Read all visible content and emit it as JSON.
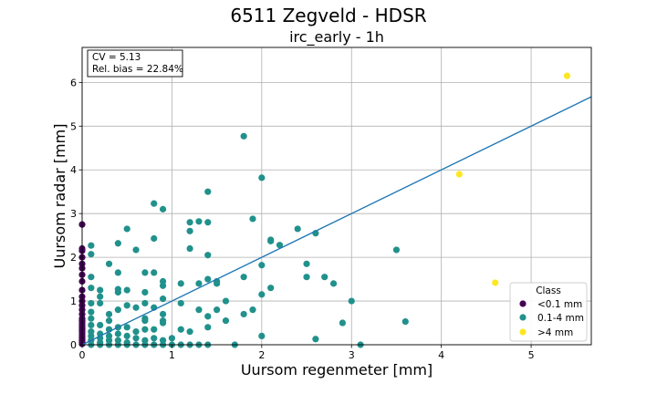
{
  "figure": {
    "suptitle": "6511 Zegveld - HDSR",
    "annotation": [
      "CV = 5.13",
      "Rel. bias = 22.84%"
    ]
  },
  "chart_data": {
    "type": "scatter",
    "title": "irc_early - 1h",
    "xlabel": "Uursom regenmeter [mm]",
    "ylabel": "Uursom radar [mm]",
    "xlim": [
      0,
      5.67
    ],
    "ylim": [
      0,
      6.8
    ],
    "xticks": [
      0,
      1,
      2,
      3,
      4,
      5
    ],
    "yticks": [
      0,
      1,
      2,
      3,
      4,
      5,
      6
    ],
    "grid": true,
    "legend": {
      "title": "Class",
      "placement": "lower-right"
    },
    "series": [
      {
        "name": "<0.1 mm",
        "color": "#440154",
        "points": [
          [
            0,
            0.02
          ],
          [
            0,
            0.05
          ],
          [
            0,
            0.08
          ],
          [
            0,
            0.12
          ],
          [
            0,
            0.15
          ],
          [
            0,
            0.2
          ],
          [
            0,
            0.25
          ],
          [
            0,
            0.3
          ],
          [
            0,
            0.35
          ],
          [
            0,
            0.4
          ],
          [
            0,
            0.45
          ],
          [
            0,
            0.5
          ],
          [
            0,
            0.55
          ],
          [
            0,
            0.6
          ],
          [
            0,
            0.7
          ],
          [
            0,
            0.8
          ],
          [
            0,
            0.9
          ],
          [
            0,
            1.0
          ],
          [
            0,
            1.1
          ],
          [
            0,
            1.25
          ],
          [
            0,
            1.45
          ],
          [
            0,
            1.6
          ],
          [
            0,
            1.75
          ],
          [
            0,
            1.85
          ],
          [
            0,
            2.0
          ],
          [
            0,
            2.15
          ],
          [
            0,
            2.2
          ],
          [
            0,
            2.75
          ]
        ]
      },
      {
        "name": "0.1-4 mm",
        "color": "#21918c",
        "points": [
          [
            0.1,
            0.0
          ],
          [
            0.1,
            0.1
          ],
          [
            0.1,
            0.2
          ],
          [
            0.1,
            0.3
          ],
          [
            0.1,
            0.45
          ],
          [
            0.1,
            0.6
          ],
          [
            0.1,
            0.75
          ],
          [
            0.1,
            0.95
          ],
          [
            0.1,
            1.3
          ],
          [
            0.1,
            1.55
          ],
          [
            0.1,
            2.07
          ],
          [
            0.1,
            2.27
          ],
          [
            0.2,
            0.0
          ],
          [
            0.2,
            0.05
          ],
          [
            0.2,
            0.15
          ],
          [
            0.2,
            0.25
          ],
          [
            0.2,
            0.45
          ],
          [
            0.2,
            0.95
          ],
          [
            0.2,
            1.1
          ],
          [
            0.2,
            1.25
          ],
          [
            0.3,
            0.0
          ],
          [
            0.3,
            0.1
          ],
          [
            0.3,
            0.2
          ],
          [
            0.3,
            0.35
          ],
          [
            0.3,
            0.55
          ],
          [
            0.3,
            0.7
          ],
          [
            0.3,
            1.85
          ],
          [
            0.4,
            0.0
          ],
          [
            0.4,
            0.1
          ],
          [
            0.4,
            0.25
          ],
          [
            0.4,
            0.4
          ],
          [
            0.4,
            0.8
          ],
          [
            0.4,
            1.2
          ],
          [
            0.4,
            1.27
          ],
          [
            0.4,
            1.65
          ],
          [
            0.4,
            2.32
          ],
          [
            0.5,
            0.0
          ],
          [
            0.5,
            0.05
          ],
          [
            0.5,
            0.2
          ],
          [
            0.5,
            0.4
          ],
          [
            0.5,
            0.9
          ],
          [
            0.5,
            1.25
          ],
          [
            0.5,
            2.65
          ],
          [
            0.6,
            0.0
          ],
          [
            0.6,
            0.15
          ],
          [
            0.6,
            0.3
          ],
          [
            0.6,
            0.85
          ],
          [
            0.6,
            2.17
          ],
          [
            0.7,
            0.0
          ],
          [
            0.7,
            0.1
          ],
          [
            0.7,
            0.35
          ],
          [
            0.7,
            0.55
          ],
          [
            0.7,
            0.6
          ],
          [
            0.7,
            0.95
          ],
          [
            0.7,
            1.2
          ],
          [
            0.7,
            1.65
          ],
          [
            0.8,
            0.0
          ],
          [
            0.8,
            0.15
          ],
          [
            0.8,
            0.35
          ],
          [
            0.8,
            0.85
          ],
          [
            0.8,
            1.65
          ],
          [
            0.8,
            2.43
          ],
          [
            0.8,
            3.23
          ],
          [
            0.9,
            0.0
          ],
          [
            0.9,
            0.1
          ],
          [
            0.9,
            0.5
          ],
          [
            0.9,
            0.55
          ],
          [
            0.9,
            0.7
          ],
          [
            0.9,
            1.05
          ],
          [
            0.9,
            1.35
          ],
          [
            0.9,
            1.45
          ],
          [
            0.9,
            3.1
          ],
          [
            1.0,
            0.0
          ],
          [
            1.0,
            0.15
          ],
          [
            1.1,
            0.0
          ],
          [
            1.1,
            0.35
          ],
          [
            1.1,
            0.95
          ],
          [
            1.1,
            1.4
          ],
          [
            1.2,
            0.0
          ],
          [
            1.2,
            0.3
          ],
          [
            1.2,
            2.2
          ],
          [
            1.2,
            2.6
          ],
          [
            1.2,
            2.8
          ],
          [
            1.3,
            0.0
          ],
          [
            1.3,
            0.8
          ],
          [
            1.3,
            1.4
          ],
          [
            1.3,
            2.82
          ],
          [
            1.4,
            0.0
          ],
          [
            1.4,
            0.4
          ],
          [
            1.4,
            0.65
          ],
          [
            1.4,
            1.5
          ],
          [
            1.4,
            2.05
          ],
          [
            1.4,
            2.8
          ],
          [
            1.4,
            3.5
          ],
          [
            1.5,
            0.8
          ],
          [
            1.5,
            1.4
          ],
          [
            1.5,
            1.45
          ],
          [
            1.6,
            0.55
          ],
          [
            1.6,
            1.0
          ],
          [
            1.7,
            0.0
          ],
          [
            1.8,
            0.7
          ],
          [
            1.8,
            1.55
          ],
          [
            1.8,
            4.77
          ],
          [
            1.9,
            0.8
          ],
          [
            1.9,
            2.88
          ],
          [
            2.0,
            0.2
          ],
          [
            2.0,
            1.15
          ],
          [
            2.0,
            1.82
          ],
          [
            2.0,
            3.82
          ],
          [
            2.1,
            1.3
          ],
          [
            2.1,
            2.37
          ],
          [
            2.1,
            2.4
          ],
          [
            2.2,
            2.28
          ],
          [
            2.4,
            2.65
          ],
          [
            2.5,
            1.55
          ],
          [
            2.5,
            1.85
          ],
          [
            2.6,
            0.13
          ],
          [
            2.6,
            2.55
          ],
          [
            2.7,
            1.55
          ],
          [
            2.8,
            1.4
          ],
          [
            2.9,
            0.5
          ],
          [
            3.0,
            1.0
          ],
          [
            3.1,
            0.0
          ],
          [
            3.5,
            2.17
          ],
          [
            3.6,
            0.53
          ]
        ]
      },
      {
        "name": ">4 mm",
        "color": "#fde725",
        "points": [
          [
            4.2,
            3.9
          ],
          [
            4.6,
            1.42
          ],
          [
            5.4,
            6.15
          ]
        ]
      }
    ],
    "fit_line": {
      "color": "#1f77b4",
      "x": [
        0,
        5.67
      ],
      "y": [
        0.0,
        5.67
      ]
    }
  }
}
